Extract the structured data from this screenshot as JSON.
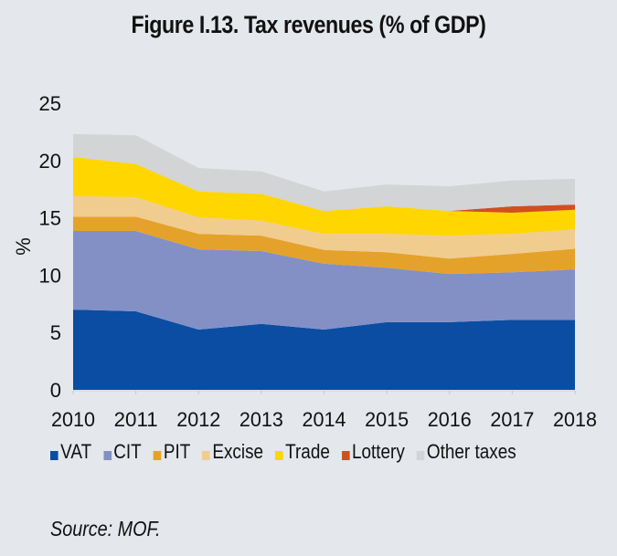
{
  "chart_data": {
    "type": "area",
    "stacked": true,
    "title": "Figure I.13. Tax revenues (% of GDP)",
    "xlabel": "",
    "ylabel": "%",
    "ylim": [
      0,
      25
    ],
    "yticks": [
      0,
      5,
      10,
      15,
      20,
      25
    ],
    "categories": [
      "2010",
      "2011",
      "2012",
      "2013",
      "2014",
      "2015",
      "2016",
      "2017",
      "2018"
    ],
    "series": [
      {
        "name": "VAT",
        "color": "#0a4da2",
        "values": [
          7.0,
          6.85,
          5.25,
          5.75,
          5.25,
          5.9,
          5.9,
          6.1,
          6.1
        ]
      },
      {
        "name": "CIT",
        "color": "#8390c6",
        "values": [
          6.85,
          7.0,
          7.0,
          6.35,
          5.75,
          4.75,
          4.2,
          4.15,
          4.4
        ]
      },
      {
        "name": "PIT",
        "color": "#e5a22a",
        "values": [
          1.25,
          1.25,
          1.35,
          1.35,
          1.2,
          1.35,
          1.35,
          1.6,
          1.8
        ]
      },
      {
        "name": "Excise",
        "color": "#f1cc8f",
        "values": [
          1.8,
          1.7,
          1.45,
          1.3,
          1.4,
          1.6,
          2.0,
          1.75,
          1.7
        ]
      },
      {
        "name": "Trade",
        "color": "#ffd600",
        "values": [
          3.4,
          2.9,
          2.25,
          2.35,
          2.0,
          2.4,
          2.15,
          1.85,
          1.7
        ]
      },
      {
        "name": "Lottery",
        "color": "#d24e21",
        "values": [
          0,
          0,
          0,
          0,
          0,
          0,
          0,
          0.55,
          0.45
        ]
      },
      {
        "name": "Other taxes",
        "color": "#d2d4d6",
        "values": [
          2.0,
          2.5,
          2.05,
          1.95,
          1.7,
          1.9,
          2.15,
          2.25,
          2.25
        ]
      }
    ],
    "grid": false,
    "legend_position": "bottom"
  },
  "source_note": "Source: MOF."
}
